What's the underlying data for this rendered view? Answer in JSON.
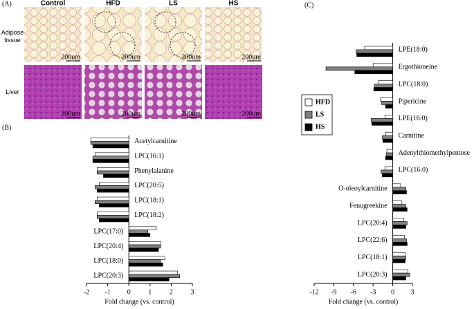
{
  "panel_a": {
    "label": "(A)",
    "columns": [
      "Control",
      "HFD",
      "LS",
      "HS"
    ],
    "rows": [
      "Adipose tissue",
      "Liver"
    ],
    "scale_bar": "200um"
  },
  "chart_data": [
    {
      "type": "bar",
      "orientation": "horizontal",
      "panel_label": "(B)",
      "categories": [
        "Acetylcarnitine",
        "LPC(16:1)",
        "Phenylalanine",
        "LPC(20:5)",
        "LPC(18:1)",
        "LPC(18:2)",
        "LPC(17:0)",
        "LPC(20:4)",
        "LPC(18:0)",
        "LPC(20:3)"
      ],
      "series": [
        {
          "name": "HFD",
          "color": "#ffffff",
          "values": [
            -1.8,
            -1.6,
            -1.5,
            -1.4,
            -1.5,
            -1.5,
            1.3,
            1.5,
            1.7,
            2.3
          ]
        },
        {
          "name": "LS",
          "color": "#808080",
          "values": [
            -1.8,
            -1.7,
            -1.5,
            -1.6,
            -1.6,
            -1.5,
            0.9,
            1.5,
            1.5,
            2.4
          ]
        },
        {
          "name": "HS",
          "color": "#000000",
          "values": [
            -1.7,
            -1.7,
            -1.2,
            -1.5,
            -1.4,
            -1.4,
            1.0,
            1.4,
            1.6,
            1.9
          ]
        }
      ],
      "xlim": [
        -2,
        3
      ],
      "xticks": [
        -2,
        -1,
        0,
        1,
        2,
        3
      ],
      "xlabel": "Fold change (vs. control)"
    },
    {
      "type": "bar",
      "orientation": "horizontal",
      "panel_label": "(C)",
      "categories": [
        "LPE(18:0)",
        "Ergothioneine",
        "LPC(18:0)",
        "Pipericine",
        "LPE(16:0)",
        "Carnitine",
        "Adenylthiomethylpentose",
        "LPC(16:0)",
        "O-oleoylcarnitine",
        "Fenugreekine",
        "LPC(20:4)",
        "LPC(22:6)",
        "LPC(18:1)",
        "LPC(20:3)"
      ],
      "series": [
        {
          "name": "HFD",
          "color": "#ffffff",
          "values": [
            -4.3,
            -3.0,
            -2.2,
            -1.9,
            -1.2,
            -1.1,
            -0.9,
            -1.2,
            1.2,
            1.4,
            1.7,
            1.8,
            1.9,
            2.3
          ]
        },
        {
          "name": "LS",
          "color": "#808080",
          "values": [
            -5.6,
            -10.2,
            -2.8,
            -1.7,
            -3.3,
            -1.6,
            -1.0,
            -1.8,
            2.0,
            2.0,
            2.2,
            2.1,
            2.0,
            2.6
          ]
        },
        {
          "name": "HS",
          "color": "#000000",
          "values": [
            -5.5,
            -5.8,
            -2.9,
            -1.1,
            -3.2,
            -1.5,
            -1.1,
            -1.6,
            2.1,
            2.2,
            2.0,
            2.2,
            1.9,
            2.0
          ]
        }
      ],
      "xlim": [
        -12,
        3
      ],
      "xticks": [
        -12,
        -9,
        -6,
        -3,
        0,
        3
      ],
      "xlabel": "Fold change (vs. control)",
      "legend": "left"
    }
  ]
}
